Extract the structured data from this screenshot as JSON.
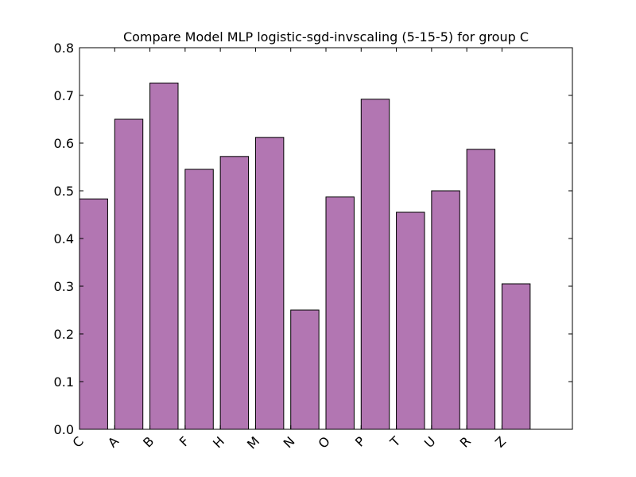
{
  "chart_data": {
    "type": "bar",
    "title": "Compare Model MLP logistic-sgd-invscaling (5-15-5) for group C",
    "xlabel": "",
    "ylabel": "",
    "categories": [
      "C",
      "A",
      "B",
      "F",
      "H",
      "M",
      "N",
      "O",
      "P",
      "T",
      "U",
      "R",
      "Z"
    ],
    "values": [
      0.483,
      0.65,
      0.726,
      0.545,
      0.572,
      0.612,
      0.25,
      0.487,
      0.692,
      0.455,
      0.5,
      0.587,
      0.305
    ],
    "ylim": [
      0.0,
      0.8
    ],
    "xlim": [
      0,
      14
    ],
    "yticks": [
      "0.0",
      "0.1",
      "0.2",
      "0.3",
      "0.4",
      "0.5",
      "0.6",
      "0.7",
      "0.8"
    ],
    "grid": false,
    "bar_color": "#b276b2",
    "edge_color": "#000000"
  }
}
